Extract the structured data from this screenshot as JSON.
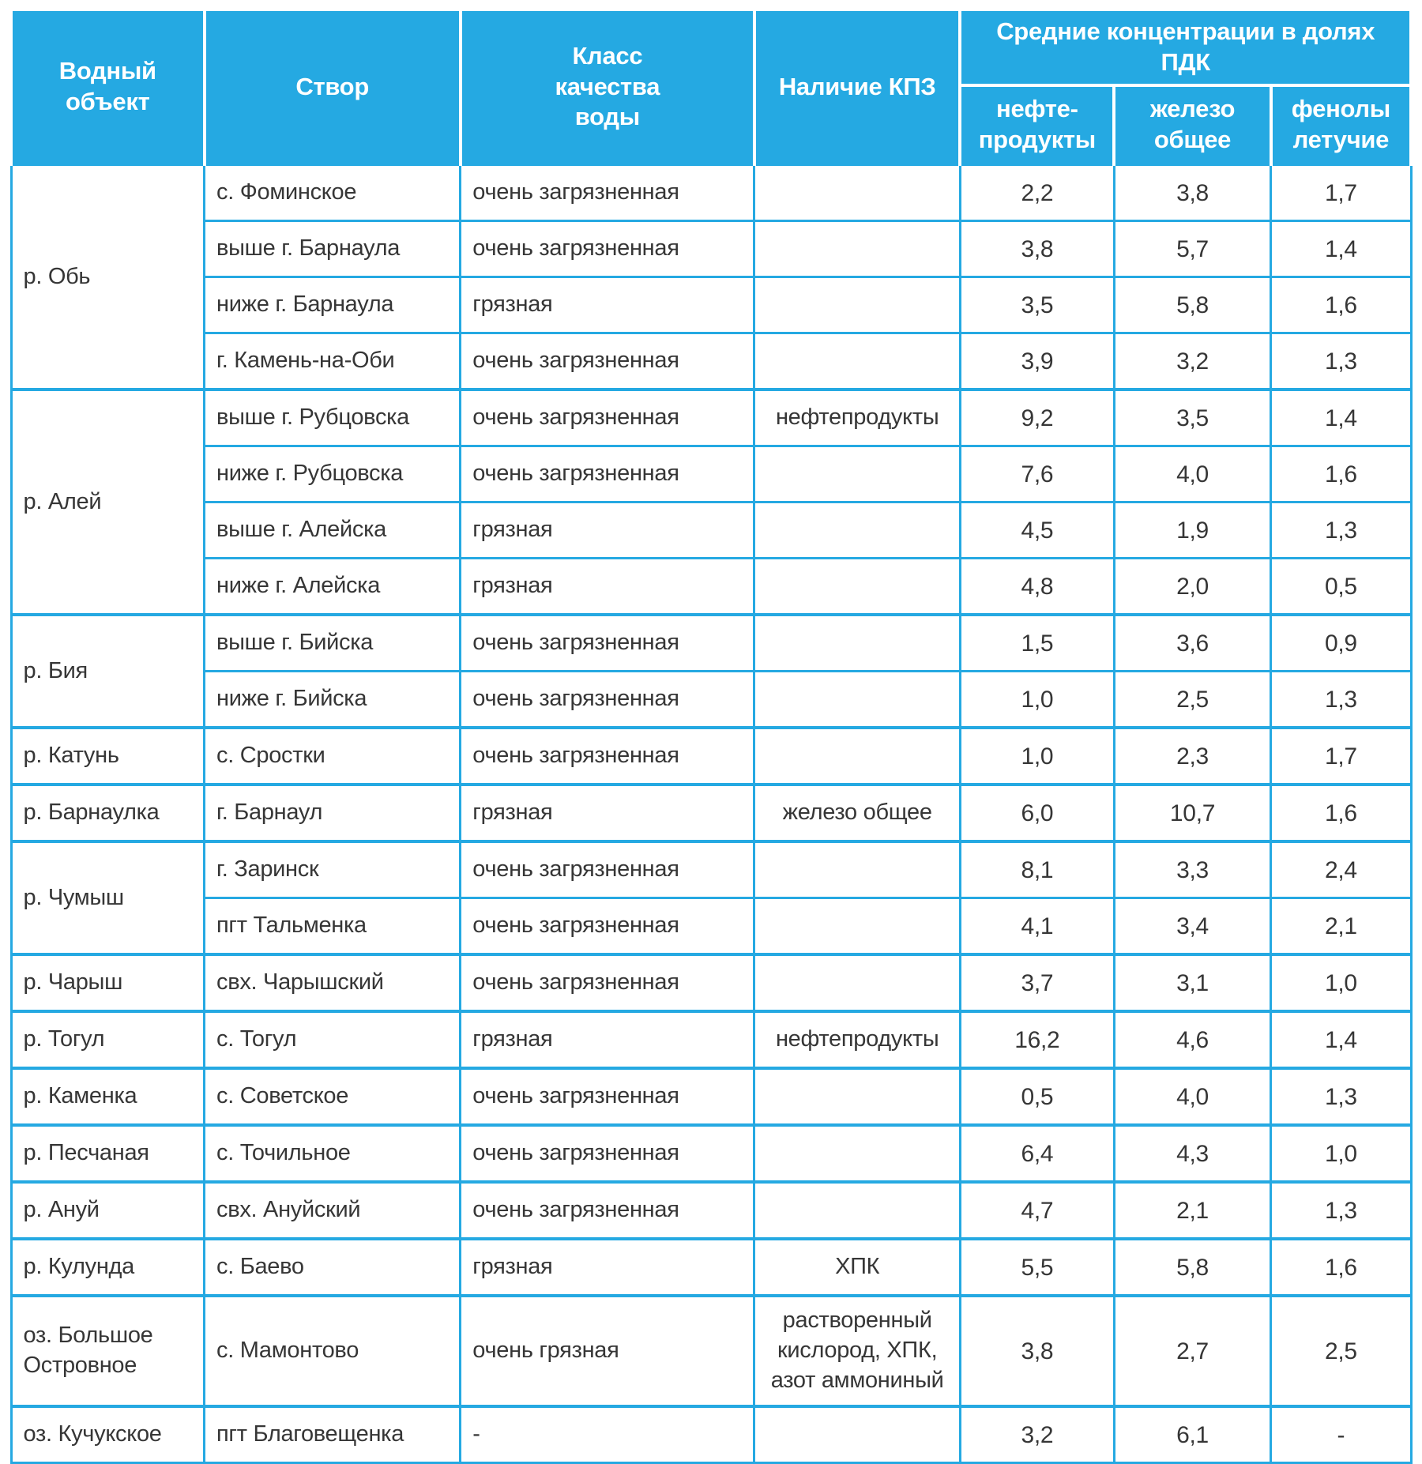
{
  "accent_color": "#25a9e2",
  "text_color": "#363636",
  "header": {
    "col_water_object": "Водный\nобъект",
    "col_section": "Створ",
    "col_quality_class": "Класс\nкачества\nводы",
    "col_kpz": "Наличие КПЗ",
    "col_concentrations": "Средние концентрации в долях\nПДК",
    "sub_oil": "нефте-\nпродукты",
    "sub_iron": "железо\nобщее",
    "sub_phenols": "фенолы\nлетучие"
  },
  "table": {
    "groups": [
      {
        "water_object": "р. Обь",
        "rows": [
          {
            "section": "с. Фоминское",
            "quality": "очень загрязненная",
            "kpz": "",
            "oil": "2,2",
            "iron": "3,8",
            "phenols": "1,7"
          },
          {
            "section": "выше г. Барнаула",
            "quality": "очень загрязненная",
            "kpz": "",
            "oil": "3,8",
            "iron": "5,7",
            "phenols": "1,4"
          },
          {
            "section": "ниже г. Барнаула",
            "quality": "грязная",
            "kpz": "",
            "oil": "3,5",
            "iron": "5,8",
            "phenols": "1,6"
          },
          {
            "section": "г. Камень-на-Оби",
            "quality": "очень загрязненная",
            "kpz": "",
            "oil": "3,9",
            "iron": "3,2",
            "phenols": "1,3"
          }
        ]
      },
      {
        "water_object": "р. Алей",
        "rows": [
          {
            "section": "выше г. Рубцовска",
            "quality": "очень загрязненная",
            "kpz": "нефтепродукты",
            "oil": "9,2",
            "iron": "3,5",
            "phenols": "1,4"
          },
          {
            "section": "ниже г. Рубцовска",
            "quality": "очень загрязненная",
            "kpz": "",
            "oil": "7,6",
            "iron": "4,0",
            "phenols": "1,6"
          },
          {
            "section": "выше г. Алейска",
            "quality": "грязная",
            "kpz": "",
            "oil": "4,5",
            "iron": "1,9",
            "phenols": "1,3"
          },
          {
            "section": "ниже г. Алейска",
            "quality": "грязная",
            "kpz": "",
            "oil": "4,8",
            "iron": "2,0",
            "phenols": "0,5"
          }
        ]
      },
      {
        "water_object": "р. Бия",
        "rows": [
          {
            "section": "выше г. Бийска",
            "quality": "очень загрязненная",
            "kpz": "",
            "oil": "1,5",
            "iron": "3,6",
            "phenols": "0,9"
          },
          {
            "section": "ниже г. Бийска",
            "quality": "очень загрязненная",
            "kpz": "",
            "oil": "1,0",
            "iron": "2,5",
            "phenols": "1,3"
          }
        ]
      },
      {
        "water_object": "р. Катунь",
        "rows": [
          {
            "section": "с. Сростки",
            "quality": "очень загрязненная",
            "kpz": "",
            "oil": "1,0",
            "iron": "2,3",
            "phenols": "1,7"
          }
        ]
      },
      {
        "water_object": "р. Барнаулка",
        "rows": [
          {
            "section": "г. Барнаул",
            "quality": "грязная",
            "kpz": "железо общее",
            "oil": "6,0",
            "iron": "10,7",
            "phenols": "1,6"
          }
        ]
      },
      {
        "water_object": "р. Чумыш",
        "rows": [
          {
            "section": "г. Заринск",
            "quality": "очень загрязненная",
            "kpz": "",
            "oil": "8,1",
            "iron": "3,3",
            "phenols": "2,4"
          },
          {
            "section": "пгт Тальменка",
            "quality": "очень загрязненная",
            "kpz": "",
            "oil": "4,1",
            "iron": "3,4",
            "phenols": "2,1"
          }
        ]
      },
      {
        "water_object": "р. Чарыш",
        "rows": [
          {
            "section": "свх. Чарышский",
            "quality": "очень загрязненная",
            "kpz": "",
            "oil": "3,7",
            "iron": "3,1",
            "phenols": "1,0"
          }
        ]
      },
      {
        "water_object": "р. Тогул",
        "rows": [
          {
            "section": "с. Тогул",
            "quality": "грязная",
            "kpz": "нефтепродукты",
            "oil": "16,2",
            "iron": "4,6",
            "phenols": "1,4"
          }
        ]
      },
      {
        "water_object": "р. Каменка",
        "rows": [
          {
            "section": "с. Советское",
            "quality": "очень загрязненная",
            "kpz": "",
            "oil": "0,5",
            "iron": "4,0",
            "phenols": "1,3"
          }
        ]
      },
      {
        "water_object": "р. Песчаная",
        "rows": [
          {
            "section": "с. Точильное",
            "quality": "очень загрязненная",
            "kpz": "",
            "oil": "6,4",
            "iron": "4,3",
            "phenols": "1,0"
          }
        ]
      },
      {
        "water_object": "р. Ануй",
        "rows": [
          {
            "section": "свх. Ануйский",
            "quality": "очень загрязненная",
            "kpz": "",
            "oil": "4,7",
            "iron": "2,1",
            "phenols": "1,3"
          }
        ]
      },
      {
        "water_object": "р. Кулунда",
        "rows": [
          {
            "section": "с. Баево",
            "quality": "грязная",
            "kpz": "ХПК",
            "oil": "5,5",
            "iron": "5,8",
            "phenols": "1,6"
          }
        ]
      },
      {
        "water_object": "оз. Большое Островное",
        "rows": [
          {
            "section": "с. Мамонтово",
            "quality": "очень грязная",
            "kpz": "растворенный\nкислород, ХПК,\nазот аммониный",
            "oil": "3,8",
            "iron": "2,7",
            "phenols": "2,5",
            "tall": true
          }
        ]
      },
      {
        "water_object": "оз. Кучукское",
        "rows": [
          {
            "section": "пгт Благовещенка",
            "quality": "-",
            "kpz": "",
            "oil": "3,2",
            "iron": "6,1",
            "phenols": "-"
          }
        ]
      }
    ]
  }
}
